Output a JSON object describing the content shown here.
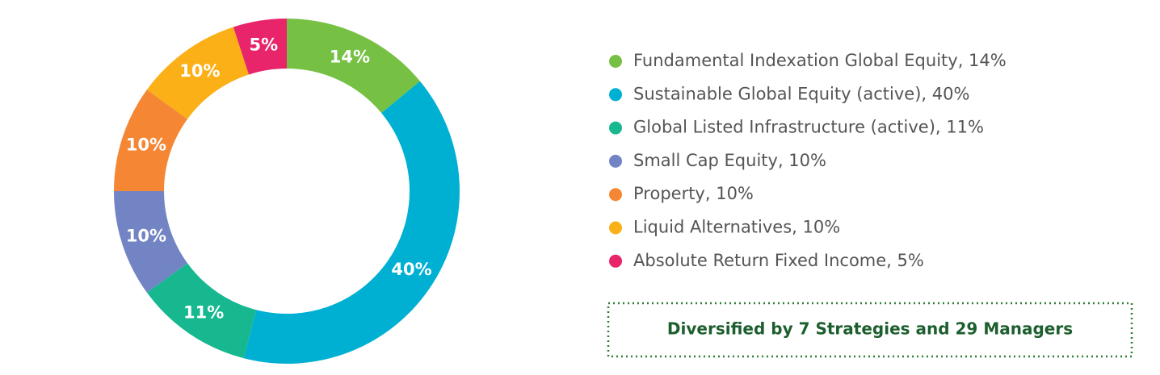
{
  "chart_data": {
    "type": "pie",
    "categories": [
      "Fundamental Indexation Global Equity, 14%",
      "Sustainable Global Equity (active), 40%",
      "Global Listed Infrastructure (active), 11%",
      "Small Cap Equity, 10%",
      "Property, 10%",
      "Liquid Alternatives, 10%",
      "Absolute Return Fixed Income, 5%"
    ],
    "values": [
      14,
      40,
      11,
      10,
      10,
      10,
      5
    ],
    "value_labels": [
      "14%",
      "40%",
      "11%",
      "10%",
      "10%",
      "10%",
      "5%"
    ],
    "colors": [
      "#76c043",
      "#00b0d3",
      "#17b890",
      "#7384c4",
      "#f58634",
      "#fbb017",
      "#e8246b"
    ],
    "annotation": "Diversified by 7 Strategies and 29 Managers"
  }
}
